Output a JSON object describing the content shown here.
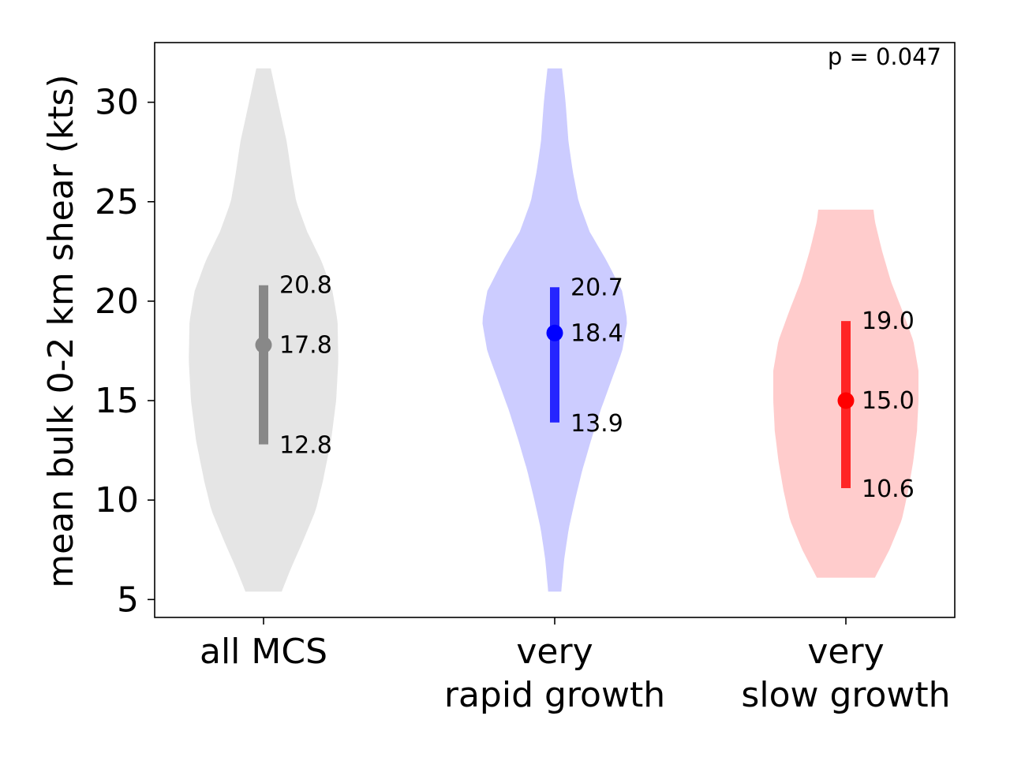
{
  "chart_data": {
    "type": "violin",
    "ylabel": "mean bulk 0-2 km shear (kts)",
    "ylim": [
      4.1,
      33.0
    ],
    "yticks": [
      5,
      10,
      15,
      20,
      25,
      30
    ],
    "ytick_labels": [
      "5",
      "10",
      "15",
      "20",
      "25",
      "30"
    ],
    "grid": false,
    "annotation": "p = 0.047",
    "annotation_position": "top-right",
    "groups": [
      {
        "label": "all MCS",
        "label_lines": [
          "all MCS"
        ],
        "fill_color": "#e5e5e5",
        "marker_color": "#888888",
        "range": [
          5.4,
          31.7
        ],
        "q1": 12.8,
        "median": 17.8,
        "q3": 20.8,
        "q1_label": "12.8",
        "median_label": "17.8",
        "q3_label": "20.8",
        "density": [
          [
            5.4,
            0.25
          ],
          [
            6.5,
            0.37
          ],
          [
            8.0,
            0.55
          ],
          [
            9.5,
            0.72
          ],
          [
            11,
            0.82
          ],
          [
            13,
            0.93
          ],
          [
            15,
            1.0
          ],
          [
            17,
            1.03
          ],
          [
            19,
            1.02
          ],
          [
            20.5,
            0.95
          ],
          [
            22,
            0.8
          ],
          [
            23.5,
            0.6
          ],
          [
            25,
            0.45
          ],
          [
            26.5,
            0.38
          ],
          [
            28,
            0.32
          ],
          [
            30,
            0.2
          ],
          [
            31.7,
            0.1
          ]
        ]
      },
      {
        "label": "very rapid growth",
        "label_lines": [
          "very",
          "rapid growth"
        ],
        "fill_color": "#ccccff",
        "marker_color": "#0000ff",
        "range": [
          5.4,
          31.7
        ],
        "q1": 13.9,
        "median": 18.4,
        "q3": 20.7,
        "q1_label": "13.9",
        "median_label": "18.4",
        "q3_label": "20.7",
        "density": [
          [
            5.4,
            0.09
          ],
          [
            7,
            0.13
          ],
          [
            8.5,
            0.19
          ],
          [
            10,
            0.28
          ],
          [
            11.5,
            0.38
          ],
          [
            13,
            0.5
          ],
          [
            14.5,
            0.63
          ],
          [
            16,
            0.78
          ],
          [
            17.5,
            0.93
          ],
          [
            19,
            1.0
          ],
          [
            20.5,
            0.93
          ],
          [
            22,
            0.72
          ],
          [
            23.5,
            0.48
          ],
          [
            25,
            0.33
          ],
          [
            26.5,
            0.25
          ],
          [
            28,
            0.19
          ],
          [
            30,
            0.15
          ],
          [
            31.7,
            0.1
          ]
        ]
      },
      {
        "label": "very slow growth",
        "label_lines": [
          "very",
          "slow growth"
        ],
        "fill_color": "#ffcccc",
        "marker_color": "#ff0000",
        "range": [
          6.1,
          24.6
        ],
        "q1": 10.6,
        "median": 15.0,
        "q3": 19.0,
        "q1_label": "10.6",
        "median_label": "15.0",
        "q3_label": "19.0",
        "density": [
          [
            6.1,
            0.4
          ],
          [
            7.5,
            0.6
          ],
          [
            9,
            0.77
          ],
          [
            10.5,
            0.86
          ],
          [
            12,
            0.93
          ],
          [
            13.5,
            0.98
          ],
          [
            15,
            1.0
          ],
          [
            16.5,
            1.0
          ],
          [
            18,
            0.93
          ],
          [
            19.5,
            0.78
          ],
          [
            21,
            0.62
          ],
          [
            22.5,
            0.5
          ],
          [
            24.0,
            0.4
          ],
          [
            24.6,
            0.38
          ]
        ]
      }
    ]
  }
}
